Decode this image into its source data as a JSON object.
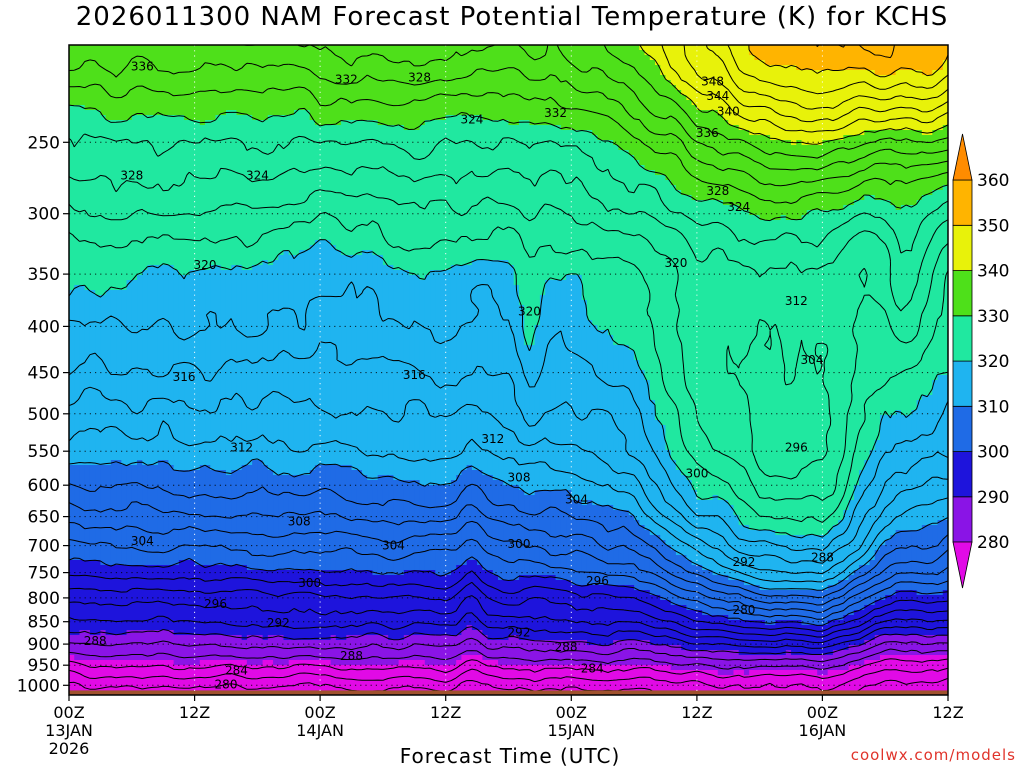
{
  "header": {
    "title": "2026011300 NAM Forecast Potential Temperature (K) for KCHS"
  },
  "footer": {
    "xlabel": "Forecast Time (UTC)",
    "credit": "coolwx.com/models"
  },
  "colors": {
    "ground": "#a0522d",
    "contour_line": "#000000",
    "bands": [
      {
        "lo": 270,
        "hi": 285,
        "color": "#e10ae6"
      },
      {
        "lo": 285,
        "hi": 290,
        "color": "#8a14e6"
      },
      {
        "lo": 290,
        "hi": 300,
        "color": "#1e14dc"
      },
      {
        "lo": 300,
        "hi": 310,
        "color": "#1f6be6"
      },
      {
        "lo": 310,
        "hi": 320,
        "color": "#1fb4f0"
      },
      {
        "lo": 320,
        "hi": 330,
        "color": "#20e8a0"
      },
      {
        "lo": 330,
        "hi": 340,
        "color": "#4ee01a"
      },
      {
        "lo": 340,
        "hi": 350,
        "color": "#e8f20a"
      },
      {
        "lo": 350,
        "hi": 360,
        "color": "#ffb400"
      },
      {
        "lo": 360,
        "hi": 370,
        "color": "#ff8c00"
      }
    ]
  },
  "chart_data": {
    "type": "heatmap",
    "title": "2026011300 NAM Forecast Potential Temperature (K) for KCHS",
    "xlabel": "Forecast Time (UTC)",
    "ylabel": "",
    "x_range_hours": [
      0,
      84
    ],
    "x_ticks": [
      {
        "hour": 0,
        "label": "00Z",
        "sub": "13JAN",
        "sub2": "2026"
      },
      {
        "hour": 12,
        "label": "12Z",
        "sub": "",
        "sub2": ""
      },
      {
        "hour": 24,
        "label": "00Z",
        "sub": "14JAN",
        "sub2": ""
      },
      {
        "hour": 36,
        "label": "12Z",
        "sub": "",
        "sub2": ""
      },
      {
        "hour": 48,
        "label": "00Z",
        "sub": "15JAN",
        "sub2": ""
      },
      {
        "hour": 60,
        "label": "12Z",
        "sub": "",
        "sub2": ""
      },
      {
        "hour": 72,
        "label": "00Z",
        "sub": "16JAN",
        "sub2": ""
      },
      {
        "hour": 84,
        "label": "12Z",
        "sub": "",
        "sub2": ""
      }
    ],
    "y_axis": "pressure (hPa), log scale, inverted",
    "y_range": [
      1025,
      195
    ],
    "y_ticks": [
      250,
      300,
      350,
      400,
      450,
      500,
      550,
      600,
      650,
      700,
      750,
      800,
      850,
      900,
      950,
      1000
    ],
    "grid": true,
    "colorbar_ticks": [
      280,
      290,
      300,
      310,
      320,
      330,
      340,
      350,
      360
    ],
    "colorbar_extend": "both",
    "contour_interval": 2,
    "contour_labels": [
      {
        "hour": 7,
        "p": 206,
        "value": 336
      },
      {
        "hour": 26.5,
        "p": 213,
        "value": 332
      },
      {
        "hour": 33.5,
        "p": 212,
        "value": 328
      },
      {
        "hour": 46.5,
        "p": 232,
        "value": 332
      },
      {
        "hour": 38.5,
        "p": 236,
        "value": 324
      },
      {
        "hour": 61.5,
        "p": 214,
        "value": 348
      },
      {
        "hour": 62,
        "p": 222,
        "value": 344
      },
      {
        "hour": 63,
        "p": 231,
        "value": 340
      },
      {
        "hour": 61,
        "p": 244,
        "value": 336
      },
      {
        "hour": 6,
        "p": 272,
        "value": 328
      },
      {
        "hour": 18,
        "p": 272,
        "value": 324
      },
      {
        "hour": 62,
        "p": 283,
        "value": 328
      },
      {
        "hour": 64,
        "p": 295,
        "value": 324
      },
      {
        "hour": 13,
        "p": 342,
        "value": 320
      },
      {
        "hour": 58,
        "p": 340,
        "value": 320
      },
      {
        "hour": 44,
        "p": 385,
        "value": 320
      },
      {
        "hour": 69.5,
        "p": 375,
        "value": 312
      },
      {
        "hour": 11,
        "p": 455,
        "value": 316
      },
      {
        "hour": 33,
        "p": 453,
        "value": 316
      },
      {
        "hour": 71,
        "p": 436,
        "value": 304
      },
      {
        "hour": 16.5,
        "p": 545,
        "value": 312
      },
      {
        "hour": 40.5,
        "p": 533,
        "value": 312
      },
      {
        "hour": 43,
        "p": 588,
        "value": 308
      },
      {
        "hour": 69.5,
        "p": 545,
        "value": 296
      },
      {
        "hour": 60,
        "p": 582,
        "value": 300
      },
      {
        "hour": 48.5,
        "p": 622,
        "value": 304
      },
      {
        "hour": 22,
        "p": 658,
        "value": 308
      },
      {
        "hour": 7,
        "p": 692,
        "value": 304
      },
      {
        "hour": 31,
        "p": 700,
        "value": 304
      },
      {
        "hour": 43,
        "p": 697,
        "value": 300
      },
      {
        "hour": 72,
        "p": 722,
        "value": 288
      },
      {
        "hour": 64.5,
        "p": 730,
        "value": 292
      },
      {
        "hour": 23,
        "p": 770,
        "value": 300
      },
      {
        "hour": 50.5,
        "p": 766,
        "value": 296
      },
      {
        "hour": 14,
        "p": 812,
        "value": 296
      },
      {
        "hour": 20,
        "p": 853,
        "value": 292
      },
      {
        "hour": 43,
        "p": 874,
        "value": 292
      },
      {
        "hour": 64.5,
        "p": 825,
        "value": 280
      },
      {
        "hour": 2.5,
        "p": 893,
        "value": 288
      },
      {
        "hour": 27,
        "p": 928,
        "value": 288
      },
      {
        "hour": 47.5,
        "p": 907,
        "value": 288
      },
      {
        "hour": 16,
        "p": 963,
        "value": 284
      },
      {
        "hour": 50,
        "p": 958,
        "value": 284
      },
      {
        "hour": 15,
        "p": 998,
        "value": 280
      }
    ]
  }
}
